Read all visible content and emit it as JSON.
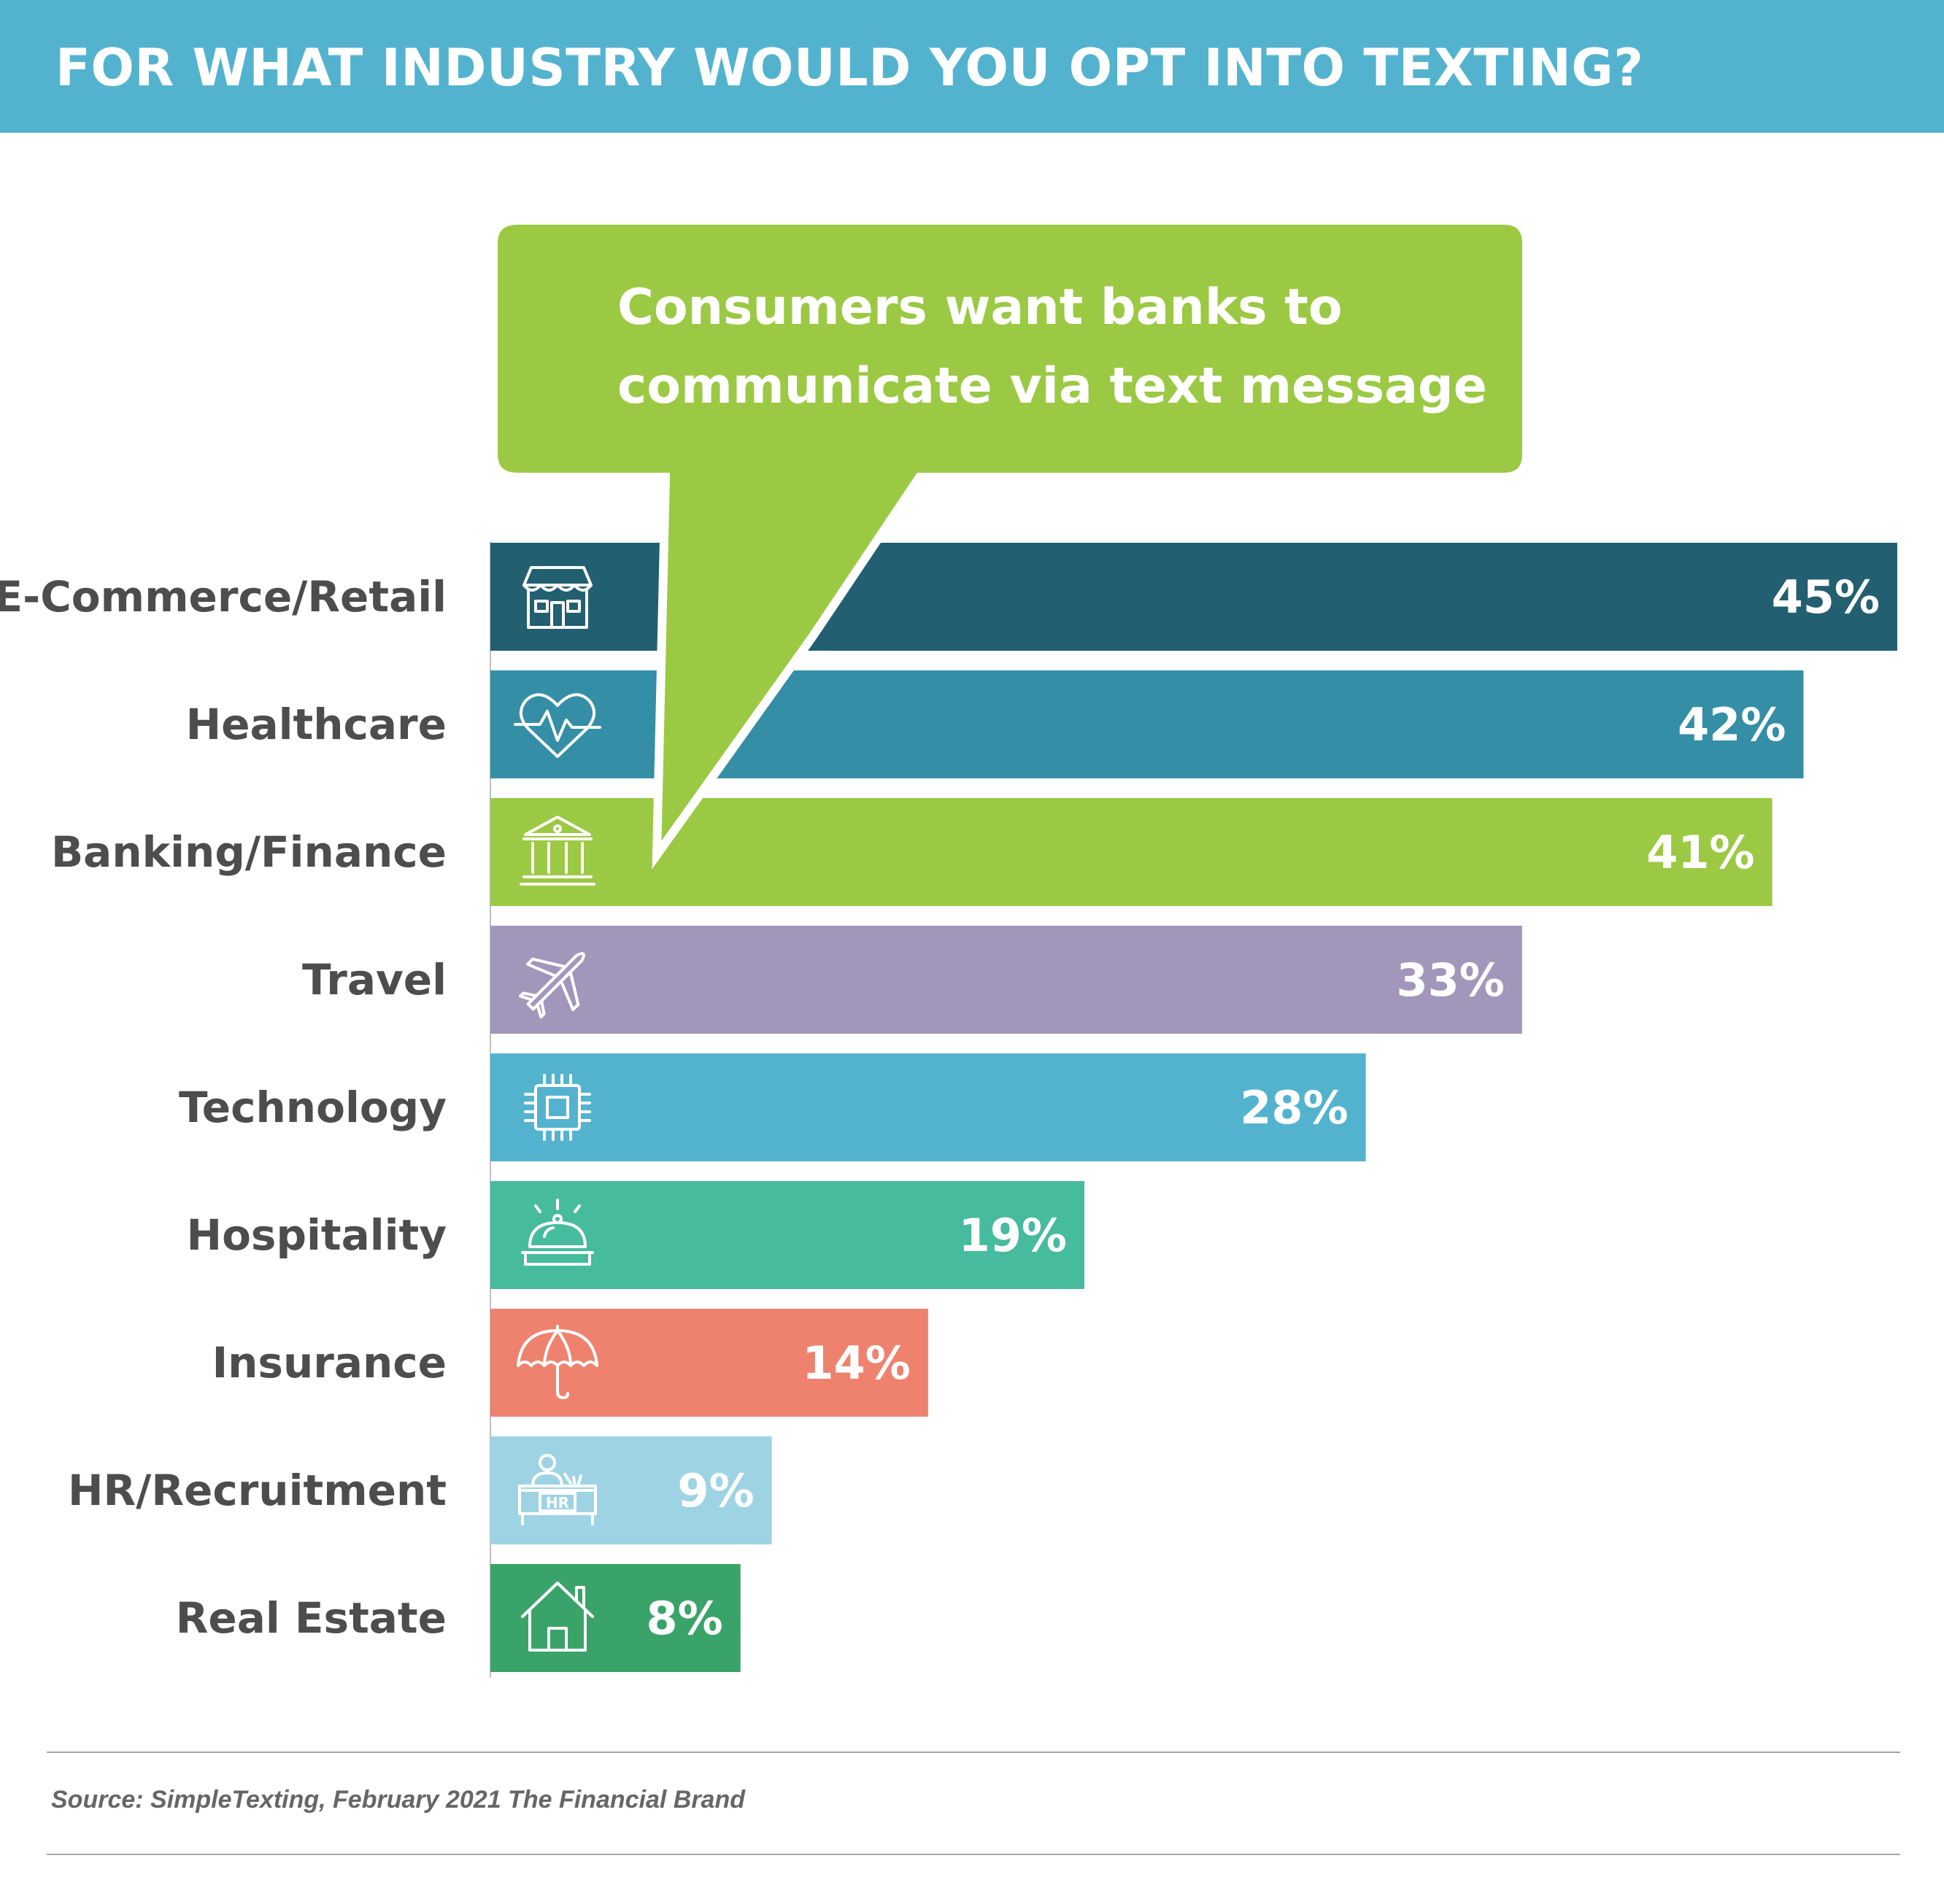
{
  "header": {
    "title": "FOR WHAT INDUSTRY WOULD YOU OPT INTO TEXTING?"
  },
  "callout": {
    "text": "Consumers want banks to communicate via text message",
    "color": "#9bc943"
  },
  "chart_data": {
    "type": "bar",
    "orientation": "horizontal",
    "title": "FOR WHAT INDUSTRY WOULD YOU OPT INTO TEXTING?",
    "categories": [
      "E-Commerce/Retail",
      "Healthcare",
      "Banking/Finance",
      "Travel",
      "Technology",
      "Hospitality",
      "Insurance",
      "HR/Recruitment",
      "Real Estate"
    ],
    "values": [
      45,
      42,
      41,
      33,
      28,
      19,
      14,
      9,
      8
    ],
    "value_labels": [
      "45%",
      "42%",
      "41%",
      "33%",
      "28%",
      "19%",
      "14%",
      "9%",
      "8%"
    ],
    "unit": "%",
    "colors": [
      "#225f70",
      "#348ea6",
      "#9bc943",
      "#a396bb",
      "#53b3cf",
      "#46bb9e",
      "#ee826f",
      "#9ed3e4",
      "#3aa36a"
    ],
    "icons": [
      "storefront-icon",
      "heartbeat-icon",
      "bank-icon",
      "airplane-icon",
      "microchip-icon",
      "service-bell-icon",
      "umbrella-icon",
      "hr-desk-icon",
      "house-icon"
    ],
    "icon_hr_text": "HR",
    "xlim": [
      0,
      45
    ],
    "grid": false,
    "legend": "none"
  },
  "footer": {
    "source": "Source: SimpleTexting, February 2021 The Financial Brand"
  }
}
